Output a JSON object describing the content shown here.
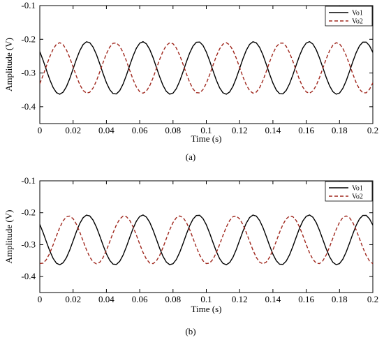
{
  "chart_data": [
    {
      "type": "line",
      "panel_label": "(a)",
      "xlabel": "Time (s)",
      "ylabel": "Amplitude (V)",
      "xlim": [
        0,
        0.2
      ],
      "ylim": [
        -0.45,
        -0.1
      ],
      "xticks": [
        "0",
        "0.02",
        "0.04",
        "0.06",
        "0.08",
        "0.1",
        "0.12",
        "0.14",
        "0.16",
        "0.18",
        "0.2"
      ],
      "yticks": [
        "-0.1",
        "-0.2",
        "-0.3",
        "-0.4"
      ],
      "legend_position": "top-right",
      "grid": false,
      "series": [
        {
          "name": "Vo1",
          "color": "#000000",
          "style": "solid",
          "offset": -0.285,
          "amplitude": 0.078,
          "period": 0.0333,
          "phase": 0.0,
          "start": -0.215
        },
        {
          "name": "Vo2",
          "color": "#a0281e",
          "style": "dashed",
          "offset": -0.285,
          "amplitude": 0.075,
          "period": 0.0333,
          "phase": 0.5,
          "start": -0.35
        }
      ]
    },
    {
      "type": "line",
      "panel_label": "(b)",
      "xlabel": "Time (s)",
      "ylabel": "Amplitude (V)",
      "xlim": [
        0,
        0.2
      ],
      "ylim": [
        -0.45,
        -0.1
      ],
      "xticks": [
        "0",
        "0.02",
        "0.04",
        "0.06",
        "0.08",
        "0.1",
        "0.12",
        "0.14",
        "0.16",
        "0.18",
        "0.2"
      ],
      "yticks": [
        "-0.1",
        "-0.2",
        "-0.3",
        "-0.4"
      ],
      "legend_position": "top-right",
      "grid": false,
      "series": [
        {
          "name": "Vo1",
          "color": "#000000",
          "style": "solid",
          "offset": -0.285,
          "amplitude": 0.078,
          "period": 0.0333,
          "phase": 0.0,
          "start": -0.215
        },
        {
          "name": "Vo2",
          "color": "#a0281e",
          "style": "dashed",
          "offset": -0.285,
          "amplitude": 0.075,
          "period": 0.0333,
          "phase": 0.667,
          "start": -0.35
        }
      ]
    }
  ]
}
